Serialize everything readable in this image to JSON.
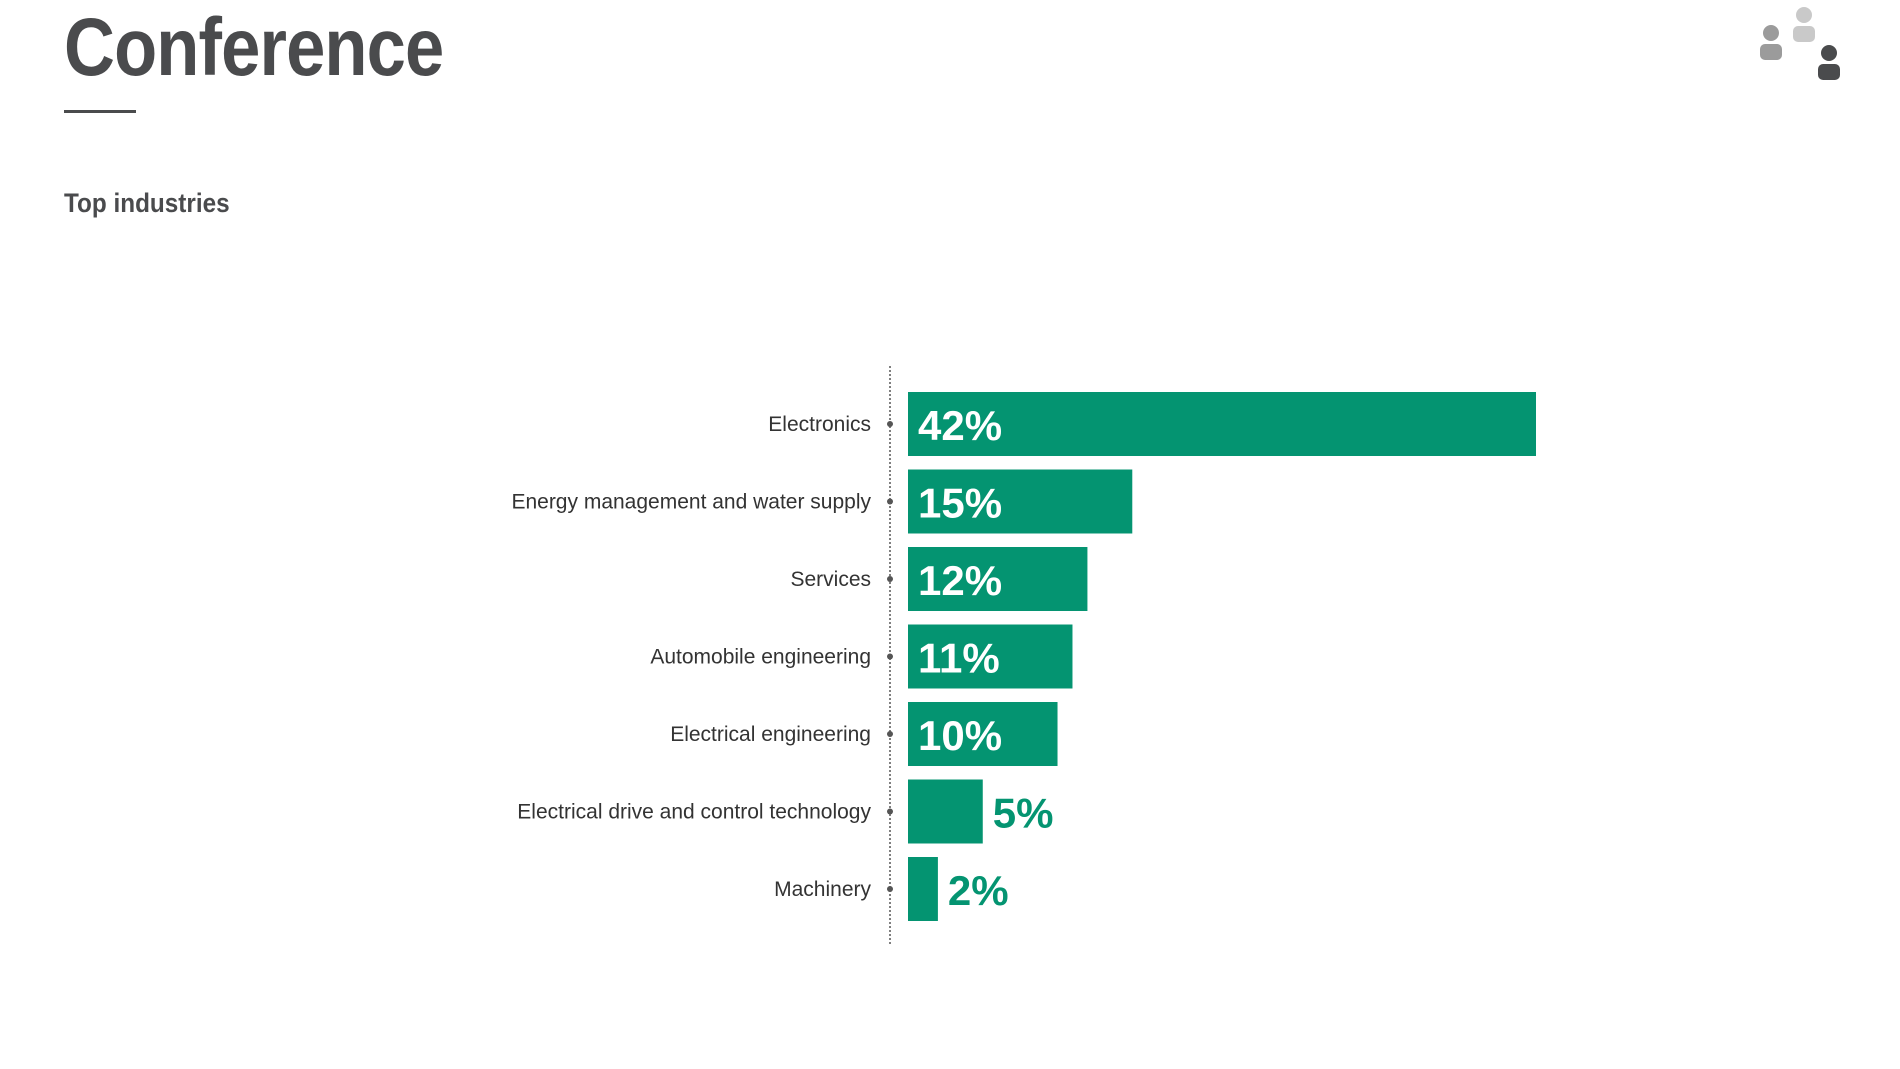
{
  "header": {
    "title": "Conference",
    "subtitle": "Top industries"
  },
  "icons": {
    "brand": "people-group-icon"
  },
  "colors": {
    "bar": "#049471",
    "text_dark": "#4a4b4d",
    "label_inside": "#ffffff",
    "label_outside": "#049471"
  },
  "chart_data": {
    "type": "bar",
    "orientation": "horizontal",
    "categories": [
      "Electronics",
      "Energy management and water supply",
      "Services",
      "Automobile engineering",
      "Electrical engineering",
      "Electrical drive and control technology",
      "Machinery"
    ],
    "values": [
      42,
      15,
      12,
      11,
      10,
      5,
      2
    ],
    "data_labels": [
      "42%",
      "15%",
      "12%",
      "11%",
      "10%",
      "5%",
      "2%"
    ],
    "title": "Top industries",
    "xlabel": "",
    "ylabel": "",
    "unit": "%",
    "xlim": [
      0,
      42
    ],
    "grid": false,
    "legend": "none"
  }
}
